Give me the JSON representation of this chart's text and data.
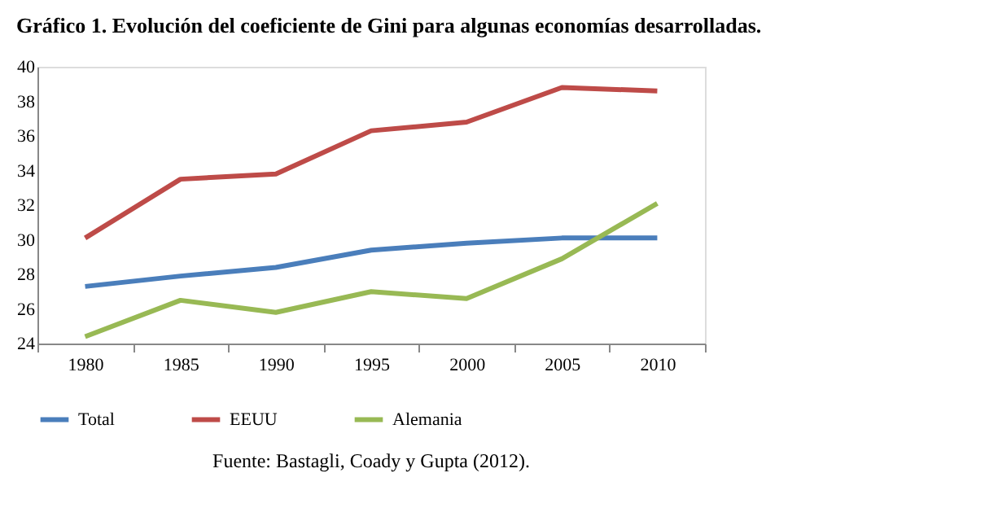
{
  "chart_data": {
    "type": "line",
    "title": "Gráfico 1. Evolución del coeficiente de Gini para algunas economías desarrolladas.",
    "categories": [
      "1980",
      "1985",
      "1990",
      "1995",
      "2000",
      "2005",
      "2010"
    ],
    "series": [
      {
        "name": "Total",
        "color": "#4a7ebb",
        "values": [
          27.3,
          27.9,
          28.4,
          29.4,
          29.8,
          30.1,
          30.1
        ]
      },
      {
        "name": "EEUU",
        "color": "#be4b48",
        "values": [
          30.1,
          33.5,
          33.8,
          36.3,
          36.8,
          38.8,
          38.6
        ]
      },
      {
        "name": "Alemania",
        "color": "#98b954",
        "values": [
          24.4,
          26.5,
          25.8,
          27.0,
          26.6,
          28.9,
          32.1
        ]
      }
    ],
    "ylim": [
      24,
      40
    ],
    "yticks": [
      24,
      26,
      28,
      30,
      32,
      34,
      36,
      38,
      40
    ],
    "grid": false,
    "legend": "bottom",
    "marker": "none",
    "line_style": "solid",
    "annotations": [
      "Fuente: Bastagli, Coady y Gupta (2012)."
    ]
  }
}
